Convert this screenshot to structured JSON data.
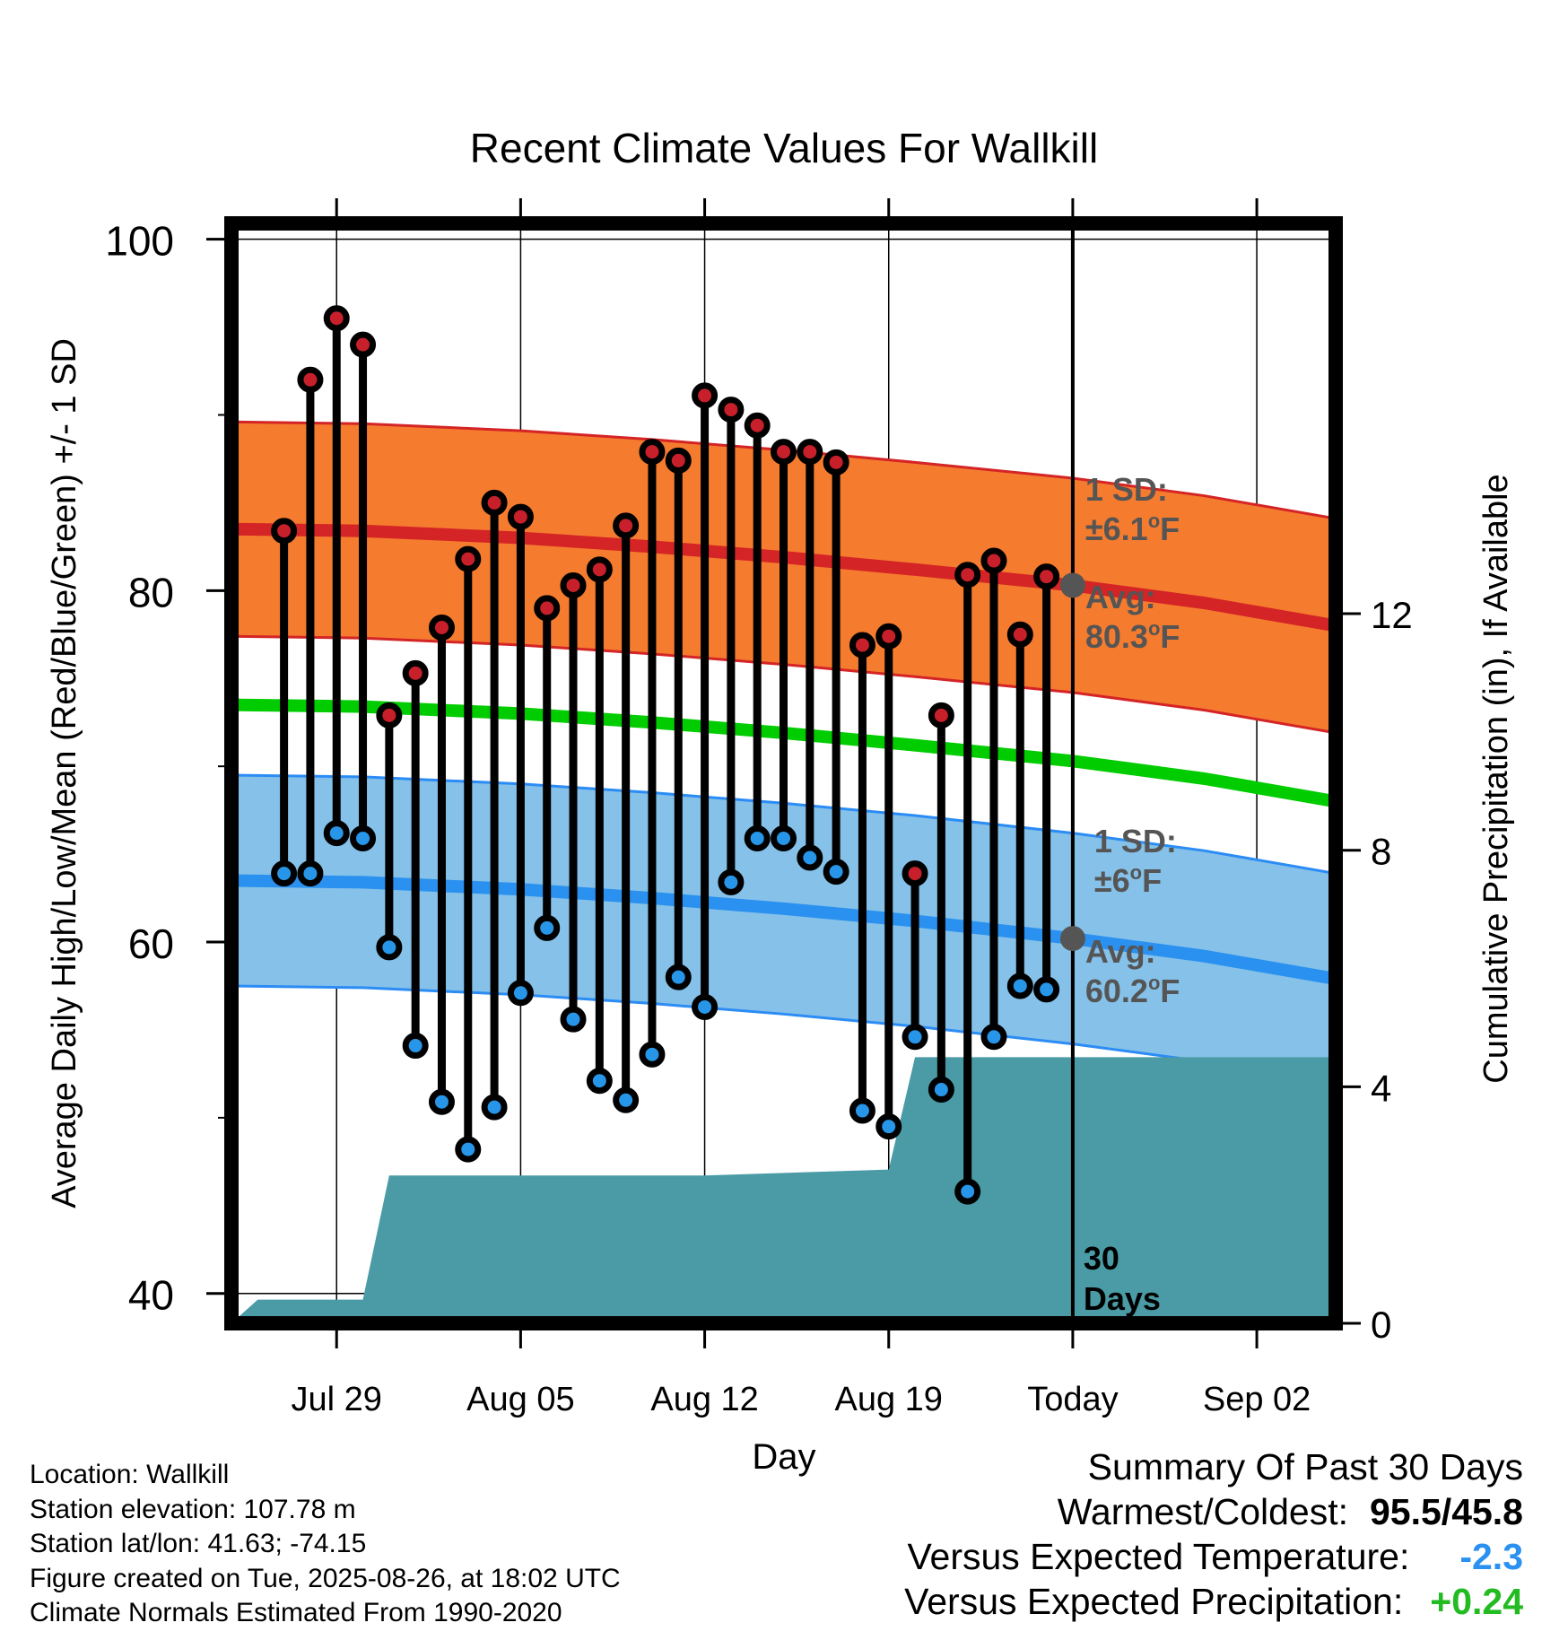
{
  "chart_data": {
    "type": "line",
    "title": "Recent Climate Values For Wallkill",
    "xlabel": "Day",
    "ylabel": "Average Daily High/Low/Mean (Red/Blue/Green) +/- 1 SD",
    "y2label": "Cumulative Precipitation (in), If Available",
    "xlim": [
      "Jul 25",
      "Sep 05"
    ],
    "ylim": [
      38.3,
      100.9
    ],
    "y2lim": [
      0,
      18.6
    ],
    "x_ticks": [
      {
        "date": "Jul 29",
        "label": "Jul 29"
      },
      {
        "date": "Aug 05",
        "label": "Aug 05"
      },
      {
        "date": "Aug 12",
        "label": "Aug 12"
      },
      {
        "date": "Aug 19",
        "label": "Aug 19"
      },
      {
        "date": "Aug 26",
        "label": "Today"
      },
      {
        "date": "Sep 02",
        "label": "Sep 02"
      }
    ],
    "y_ticks": [
      "40",
      "60",
      "80",
      "100"
    ],
    "y_minor_ticks": [
      50,
      70,
      90
    ],
    "y2_ticks": [
      "0",
      "4",
      "8",
      "12"
    ],
    "grid": true,
    "dates": [
      "Jul 27",
      "Jul 28",
      "Jul 29",
      "Jul 30",
      "Jul 31",
      "Aug 01",
      "Aug 02",
      "Aug 03",
      "Aug 04",
      "Aug 05",
      "Aug 06",
      "Aug 07",
      "Aug 08",
      "Aug 09",
      "Aug 10",
      "Aug 11",
      "Aug 12",
      "Aug 13",
      "Aug 14",
      "Aug 15",
      "Aug 16",
      "Aug 17",
      "Aug 18",
      "Aug 19",
      "Aug 20",
      "Aug 21",
      "Aug 22",
      "Aug 23",
      "Aug 24",
      "Aug 25"
    ],
    "series": [
      {
        "name": "High",
        "color": "#c8202a",
        "values": [
          83.4,
          92.0,
          95.5,
          94.0,
          72.9,
          75.3,
          77.9,
          81.8,
          85.0,
          84.2,
          79.0,
          80.3,
          81.2,
          83.7,
          87.9,
          87.4,
          91.1,
          90.3,
          89.4,
          87.9,
          87.9,
          87.3,
          76.9,
          77.4,
          63.9,
          72.9,
          80.9,
          81.7,
          77.5,
          80.8
        ]
      },
      {
        "name": "Low",
        "color": "#2896e8",
        "values": [
          63.9,
          63.9,
          66.2,
          65.9,
          59.7,
          54.1,
          50.9,
          48.2,
          50.6,
          57.1,
          60.8,
          55.6,
          52.1,
          51.0,
          53.6,
          58.0,
          56.3,
          63.4,
          65.9,
          65.9,
          64.8,
          64.0,
          50.4,
          49.5,
          54.6,
          51.6,
          45.8,
          54.6,
          57.5,
          57.3
        ]
      }
    ],
    "normal_dates": [
      "Jul 25",
      "Jul 30",
      "Aug 05",
      "Aug 10",
      "Aug 15",
      "Aug 20",
      "Aug 26",
      "Aug 31",
      "Sep 05"
    ],
    "normal_high": [
      83.5,
      83.4,
      83.0,
      82.5,
      81.9,
      81.2,
      80.3,
      79.3,
      78.0
    ],
    "normal_high_sd": 6.1,
    "normal_low": [
      63.5,
      63.4,
      63.0,
      62.5,
      61.9,
      61.2,
      60.2,
      59.2,
      57.9
    ],
    "normal_low_sd": 6.0,
    "normal_mean": [
      73.5,
      73.4,
      73.0,
      72.5,
      71.9,
      71.2,
      70.3,
      69.3,
      68.0
    ],
    "precip_dates": [
      "Jul 25",
      "Jul 26",
      "Jul 30",
      "Jul 31",
      "Aug 05",
      "Aug 12",
      "Aug 19",
      "Aug 20",
      "Aug 26",
      "Sep 05"
    ],
    "precip_values": [
      0.0,
      0.4,
      0.4,
      2.5,
      2.5,
      2.5,
      2.6,
      4.5,
      4.5,
      4.5
    ],
    "annotations": {
      "high_sd": {
        "line1": "1 SD:",
        "line2_pre": "±6.1",
        "line2_post": "F",
        "degree": "o"
      },
      "high_avg": {
        "line1": "Avg:",
        "line2_pre": "80.3",
        "line2_post": "F",
        "degree": "o"
      },
      "low_sd": {
        "line1": "1 SD:",
        "line2_pre": "±6",
        "line2_post": "F",
        "degree": "o"
      },
      "low_avg": {
        "line1": "Avg:",
        "line2_pre": "60.2",
        "line2_post": "F",
        "degree": "o"
      },
      "period_line1": "30",
      "period_line2": "Days"
    },
    "colors": {
      "high_band": "#f57b2e",
      "high_line": "#d42426",
      "low_band": "#85c1e8",
      "low_line": "#2a91f0",
      "low_band_edge": "#2b8cf5",
      "mean_line": "#00cc00",
      "precip_fill": "#4a9ba5",
      "annotation_text": "#555555",
      "today_marker": "#555555"
    }
  },
  "meta": {
    "location": "Location: Wallkill",
    "elevation": "Station elevation: 107.78 m",
    "latlon": "Station lat/lon: 41.63; -74.15",
    "created": "Figure created on Tue, 2025-08-26, at 18:02 UTC",
    "normals": "Climate Normals Estimated From 1990-2020"
  },
  "summary": {
    "title": "Summary Of Past 30 Days",
    "warm_cold_label": "Warmest/Coldest:",
    "warm_cold_value": "95.5/45.8",
    "temp_label": "Versus Expected Temperature:",
    "temp_value": "-2.3",
    "temp_color": "#2a91f0",
    "precip_label": "Versus Expected Precipitation:",
    "precip_value": "+0.24",
    "precip_color": "#22bb22"
  }
}
